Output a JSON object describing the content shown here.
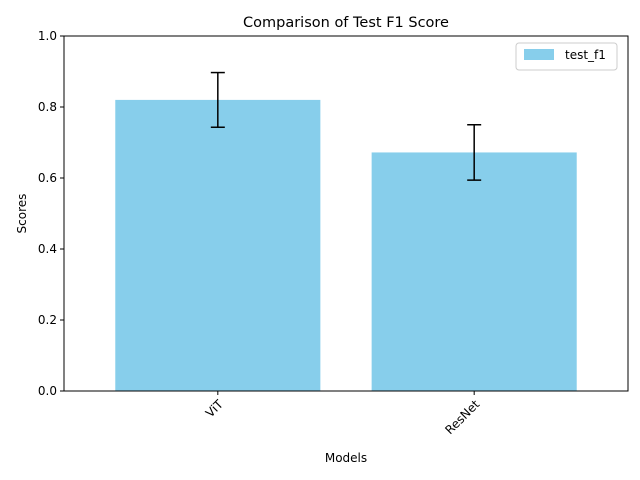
{
  "chart_data": {
    "type": "bar",
    "title": "Comparison of Test F1 Score",
    "xlabel": "Models",
    "ylabel": "Scores",
    "categories": [
      "ViT",
      "ResNet"
    ],
    "series": [
      {
        "name": "test_f1",
        "values": [
          0.82,
          0.672
        ],
        "errors": [
          0.077,
          0.078
        ],
        "color": "#87ceeb"
      }
    ],
    "ylim": [
      0,
      1.0
    ],
    "yticks": [
      "0.0",
      "0.2",
      "0.4",
      "0.6",
      "0.8",
      "1.0"
    ],
    "grid": false,
    "legend_position": "top-right",
    "x_tick_rotation": 45
  }
}
